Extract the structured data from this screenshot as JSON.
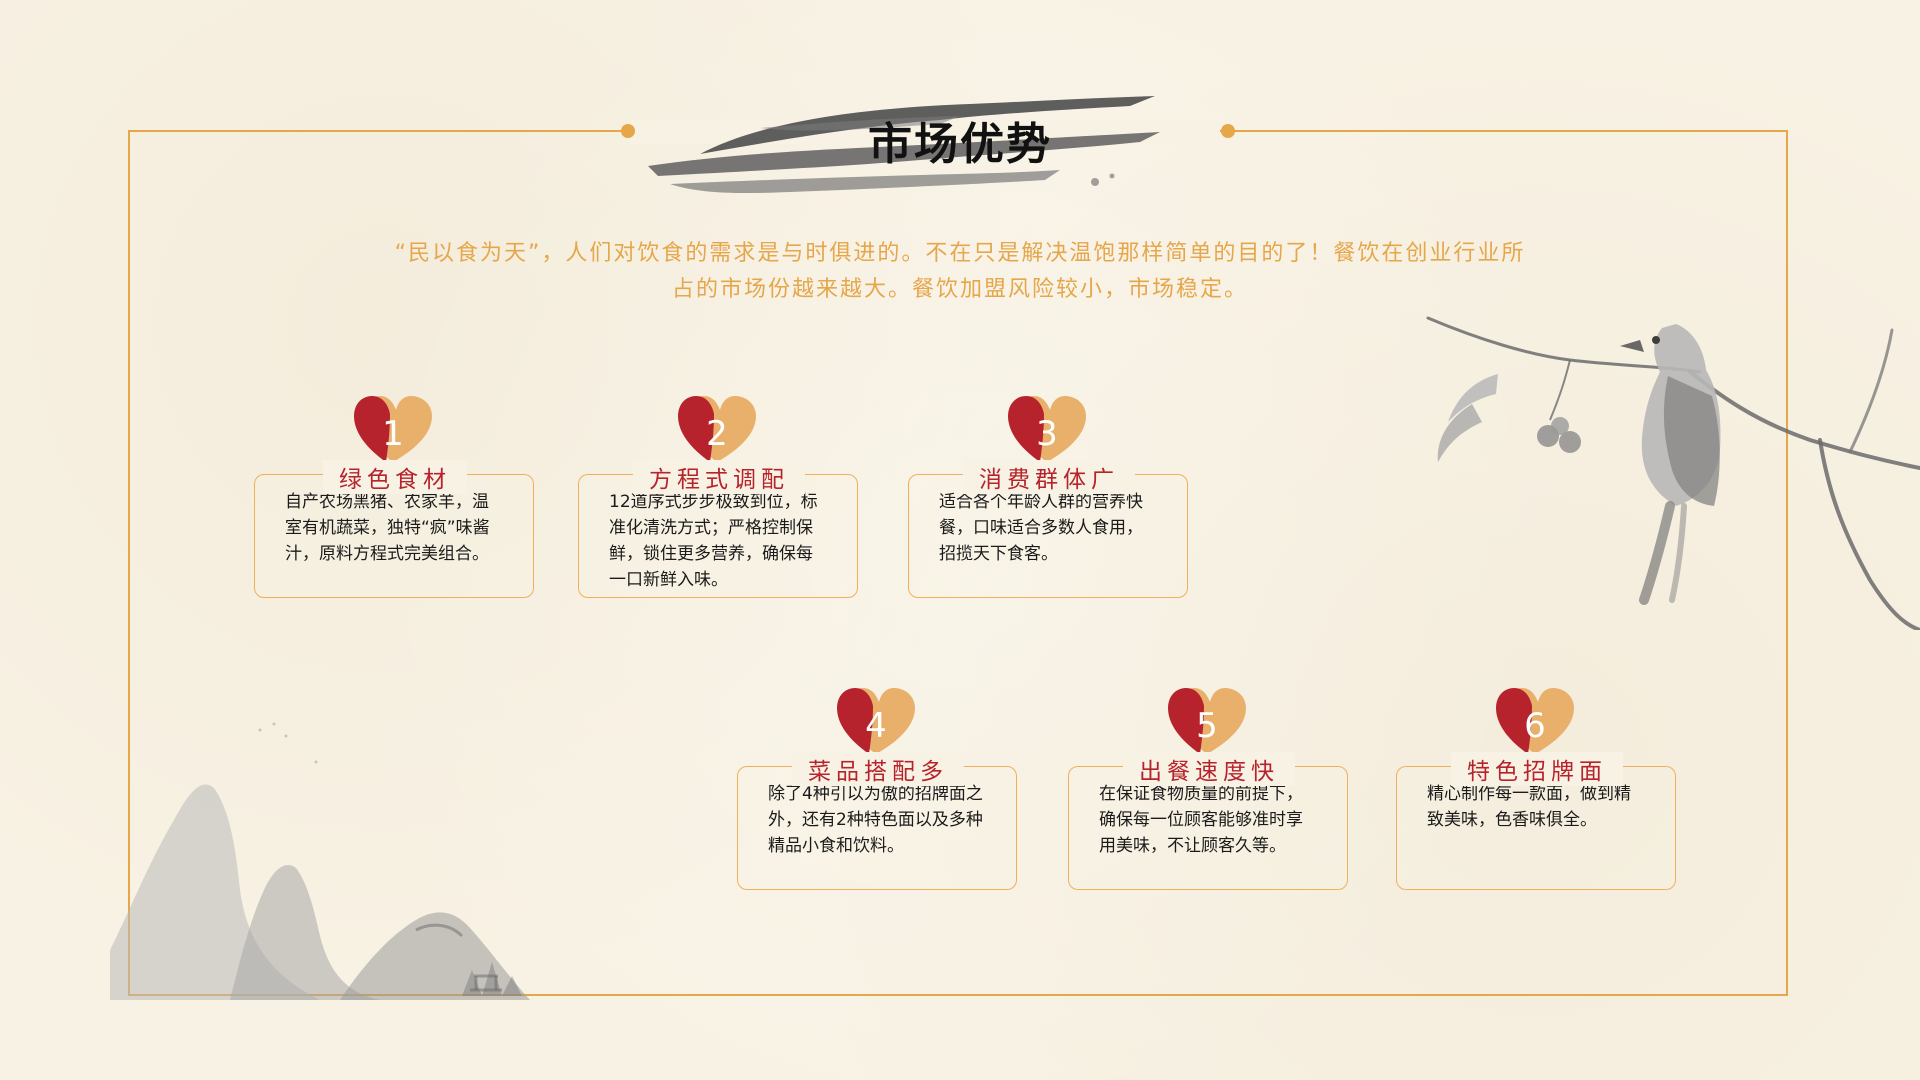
{
  "page": {
    "title": "市场优势",
    "intro": "“民以食为天”，人们对饮食的需求是与时俱进的。不在只是解决温饱那样简单的目的了！餐饮在创业行业所占的市场份越来越大。餐饮加盟风险较小，市场稳定。"
  },
  "colors": {
    "accent": "#e6a64a",
    "heart_dark": "#b6232c",
    "heart_light": "#e8b06a",
    "title_red": "#b6232c"
  },
  "items": [
    {
      "number": "1",
      "title": "绿色食材",
      "description": "自产农场黑猪、农家羊，温室有机蔬菜，独特“疯”味酱汁，原料方程式完美组合。"
    },
    {
      "number": "2",
      "title": "方程式调配",
      "description": "12道序式步步极致到位，标准化清洗方式；严格控制保鲜，锁住更多营养，确保每一口新鲜入味。"
    },
    {
      "number": "3",
      "title": "消费群体广",
      "description": "适合各个年龄人群的营养快餐，口味适合多数人食用，招揽天下食客。"
    },
    {
      "number": "4",
      "title": "菜品搭配多",
      "description": "除了4种引以为傲的招牌面之外，还有2种特色面以及多种精品小食和饮料。"
    },
    {
      "number": "5",
      "title": "出餐速度快",
      "description": "在保证食物质量的前提下，确保每一位顾客能够准时享用美味，不让顾客久等。"
    },
    {
      "number": "6",
      "title": "特色招牌面",
      "description": "精心制作每一款面，做到精致美味，色香味俱全。"
    }
  ],
  "decor": {
    "top_right": "bird-on-branch-ink-painting",
    "bottom_left": "mountain-ink-painting"
  }
}
